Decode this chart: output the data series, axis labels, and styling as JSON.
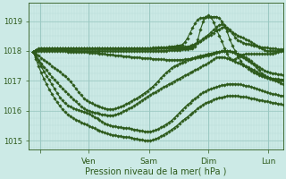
{
  "xlabel": "Pression niveau de la mer( hPa )",
  "bg_color": "#cceae6",
  "line_color": "#2d5a1b",
  "grid_minor_color": "#b0d8d2",
  "grid_major_color": "#9ac8c2",
  "tick_color": "#2d5a1b",
  "ylim": [
    1014.7,
    1019.6
  ],
  "yticks": [
    1015,
    1016,
    1017,
    1018,
    1019
  ],
  "day_tick_positions": [
    0.18,
    0.94,
    1.89,
    2.83,
    3.77
  ],
  "day_labels": [
    "",
    "Ven",
    "Sam",
    "Dim",
    "Lun"
  ],
  "xlim": [
    0.0,
    4.0
  ],
  "figsize": [
    3.2,
    2.0
  ],
  "dpi": 100
}
